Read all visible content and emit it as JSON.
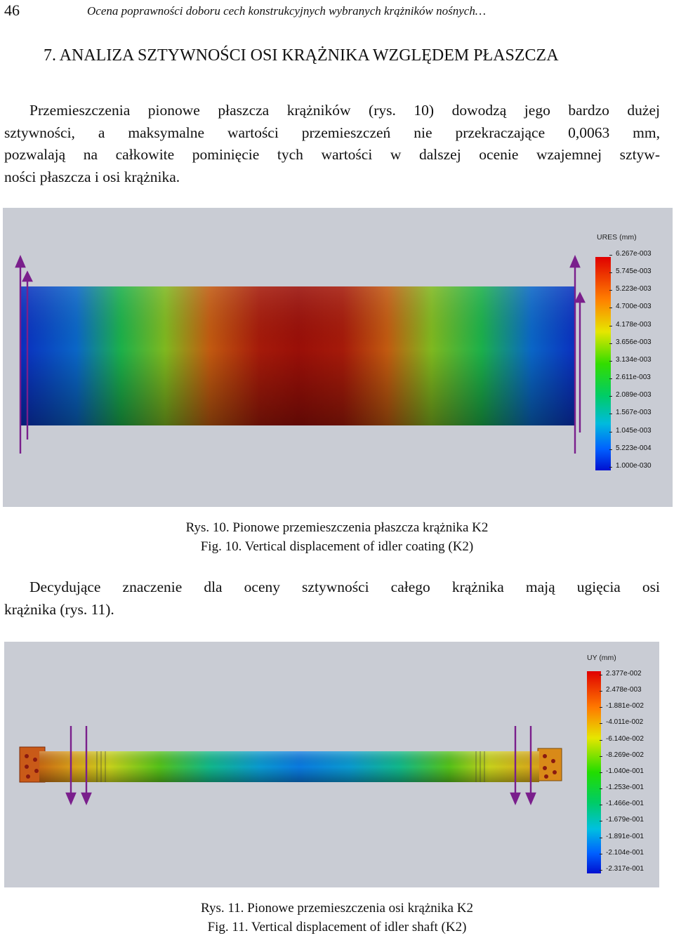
{
  "header": {
    "page_number": "46",
    "running_title": "Ocena poprawności doboru cech konstrukcyjnych wybranych krążników nośnych…"
  },
  "section": {
    "title": "7. ANALIZA SZTYWNOŚCI OSI KRĄŻNIKA WZGLĘDEM PŁASZCZA"
  },
  "paragraph1": {
    "lines": [
      "Przemieszczenia pionowe płaszcza krążników (rys. 10) dowodzą jego bardzo dużej",
      "sztywności, a maksymalne wartości przemieszczeń nie przekraczające 0,0063 mm,",
      "pozwalają na całkowite pominięcie tych wartości w dalszej ocenie wzajemnej sztyw-",
      "ności płaszcza i osi krążnika."
    ]
  },
  "figure1": {
    "legend_title": "URES (mm)",
    "ticks": [
      "6.267e-003",
      "5.745e-003",
      "5.223e-003",
      "4.700e-003",
      "4.178e-003",
      "3.656e-003",
      "3.134e-003",
      "2.611e-003",
      "2.089e-003",
      "1.567e-003",
      "1.045e-003",
      "5.223e-004",
      "1.000e-030"
    ],
    "caption_pl": "Rys. 10. Pionowe przemieszczenia płaszcza krążnika K2",
    "caption_en": "Fig. 10. Vertical displacement of idler coating (K2)"
  },
  "paragraph2": {
    "lines": [
      "Decydujące znaczenie dla oceny sztywności całego krążnika mają ugięcia osi",
      "krążnika (rys. 11)."
    ]
  },
  "figure2": {
    "legend_title": "UY (mm)",
    "ticks": [
      "2.377e-002",
      "2.478e-003",
      "-1.881e-002",
      "-4.011e-002",
      "-6.140e-002",
      "-8.269e-002",
      "-1.040e-001",
      "-1.253e-001",
      "-1.466e-001",
      "-1.679e-001",
      "-1.891e-001",
      "-2.104e-001",
      "-2.317e-001"
    ],
    "caption_pl": "Rys. 11. Pionowe przemieszczenia osi krążnika K2",
    "caption_en": "Fig. 11. Vertical displacement of idler shaft (K2)"
  },
  "colors": {
    "arrow": "#7a1f8c",
    "figure_background": "#c9ccd4"
  }
}
